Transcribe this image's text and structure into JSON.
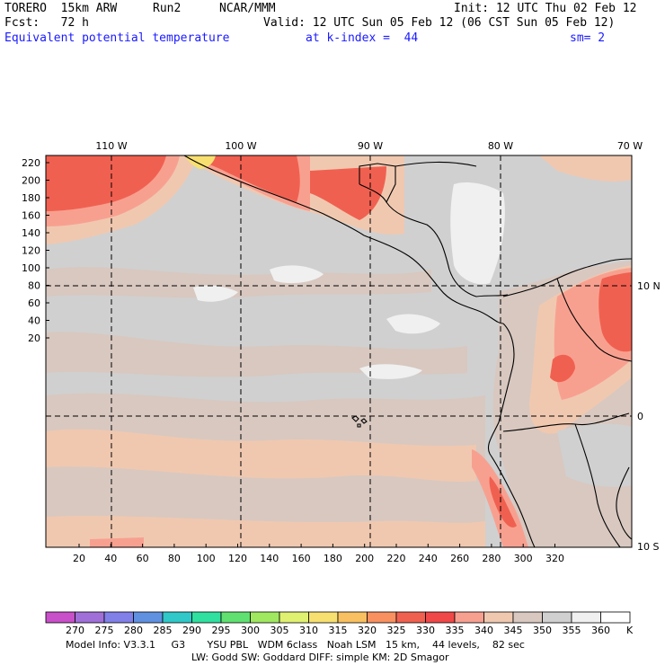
{
  "header": {
    "model": "TORERO  15km ARW",
    "run": "Run2",
    "org": "NCAR/MMM",
    "init": "Init: 12 UTC Thu 02 Feb 12",
    "fcst": "Fcst:   72 h",
    "valid": "Valid: 12 UTC Sun 05 Feb 12 (06 CST Sun 05 Feb 12)",
    "field": "Equivalent potential temperature",
    "level": "at k-index =  44",
    "smooth": "sm= 2"
  },
  "map": {
    "top_lon_labels": [
      "110 W",
      "100 W",
      "90 W",
      "80 W",
      "70 W"
    ],
    "right_lat_labels": [
      "10 N",
      "0",
      "10 S"
    ],
    "left_y_ticks": [
      "220",
      "200",
      "180",
      "160",
      "140",
      "120",
      "100",
      "80",
      "60",
      "40",
      "20"
    ],
    "bottom_x_ticks": [
      "20",
      "40",
      "60",
      "80",
      "100",
      "120",
      "140",
      "160",
      "180",
      "200",
      "220",
      "240",
      "260",
      "280",
      "300",
      "320"
    ]
  },
  "colorbar": {
    "labels": [
      "270",
      "275",
      "280",
      "285",
      "290",
      "295",
      "300",
      "305",
      "310",
      "315",
      "320",
      "325",
      "330",
      "335",
      "340",
      "345",
      "350",
      "355",
      "360"
    ],
    "unit": "K",
    "colors": [
      "#c850c8",
      "#a070d8",
      "#8080e8",
      "#6090e0",
      "#30c8c8",
      "#30e0a0",
      "#60e070",
      "#a0e860",
      "#e0f070",
      "#f8e070",
      "#f8c060",
      "#f89060",
      "#f06050",
      "#f04848",
      "#f8a090",
      "#f0c8b0",
      "#d8c8c0",
      "#d0d0d0",
      "#f0f0f0",
      "#ffffff"
    ]
  },
  "footer": {
    "line1": "Model Info: V3.3.1     G3       YSU PBL   WDM 6class   Noah LSM   15 km,    44 levels,    82 sec",
    "line2": "LW: Godd SW: Goddard DIFF: simple KM: 2D Smagor"
  }
}
